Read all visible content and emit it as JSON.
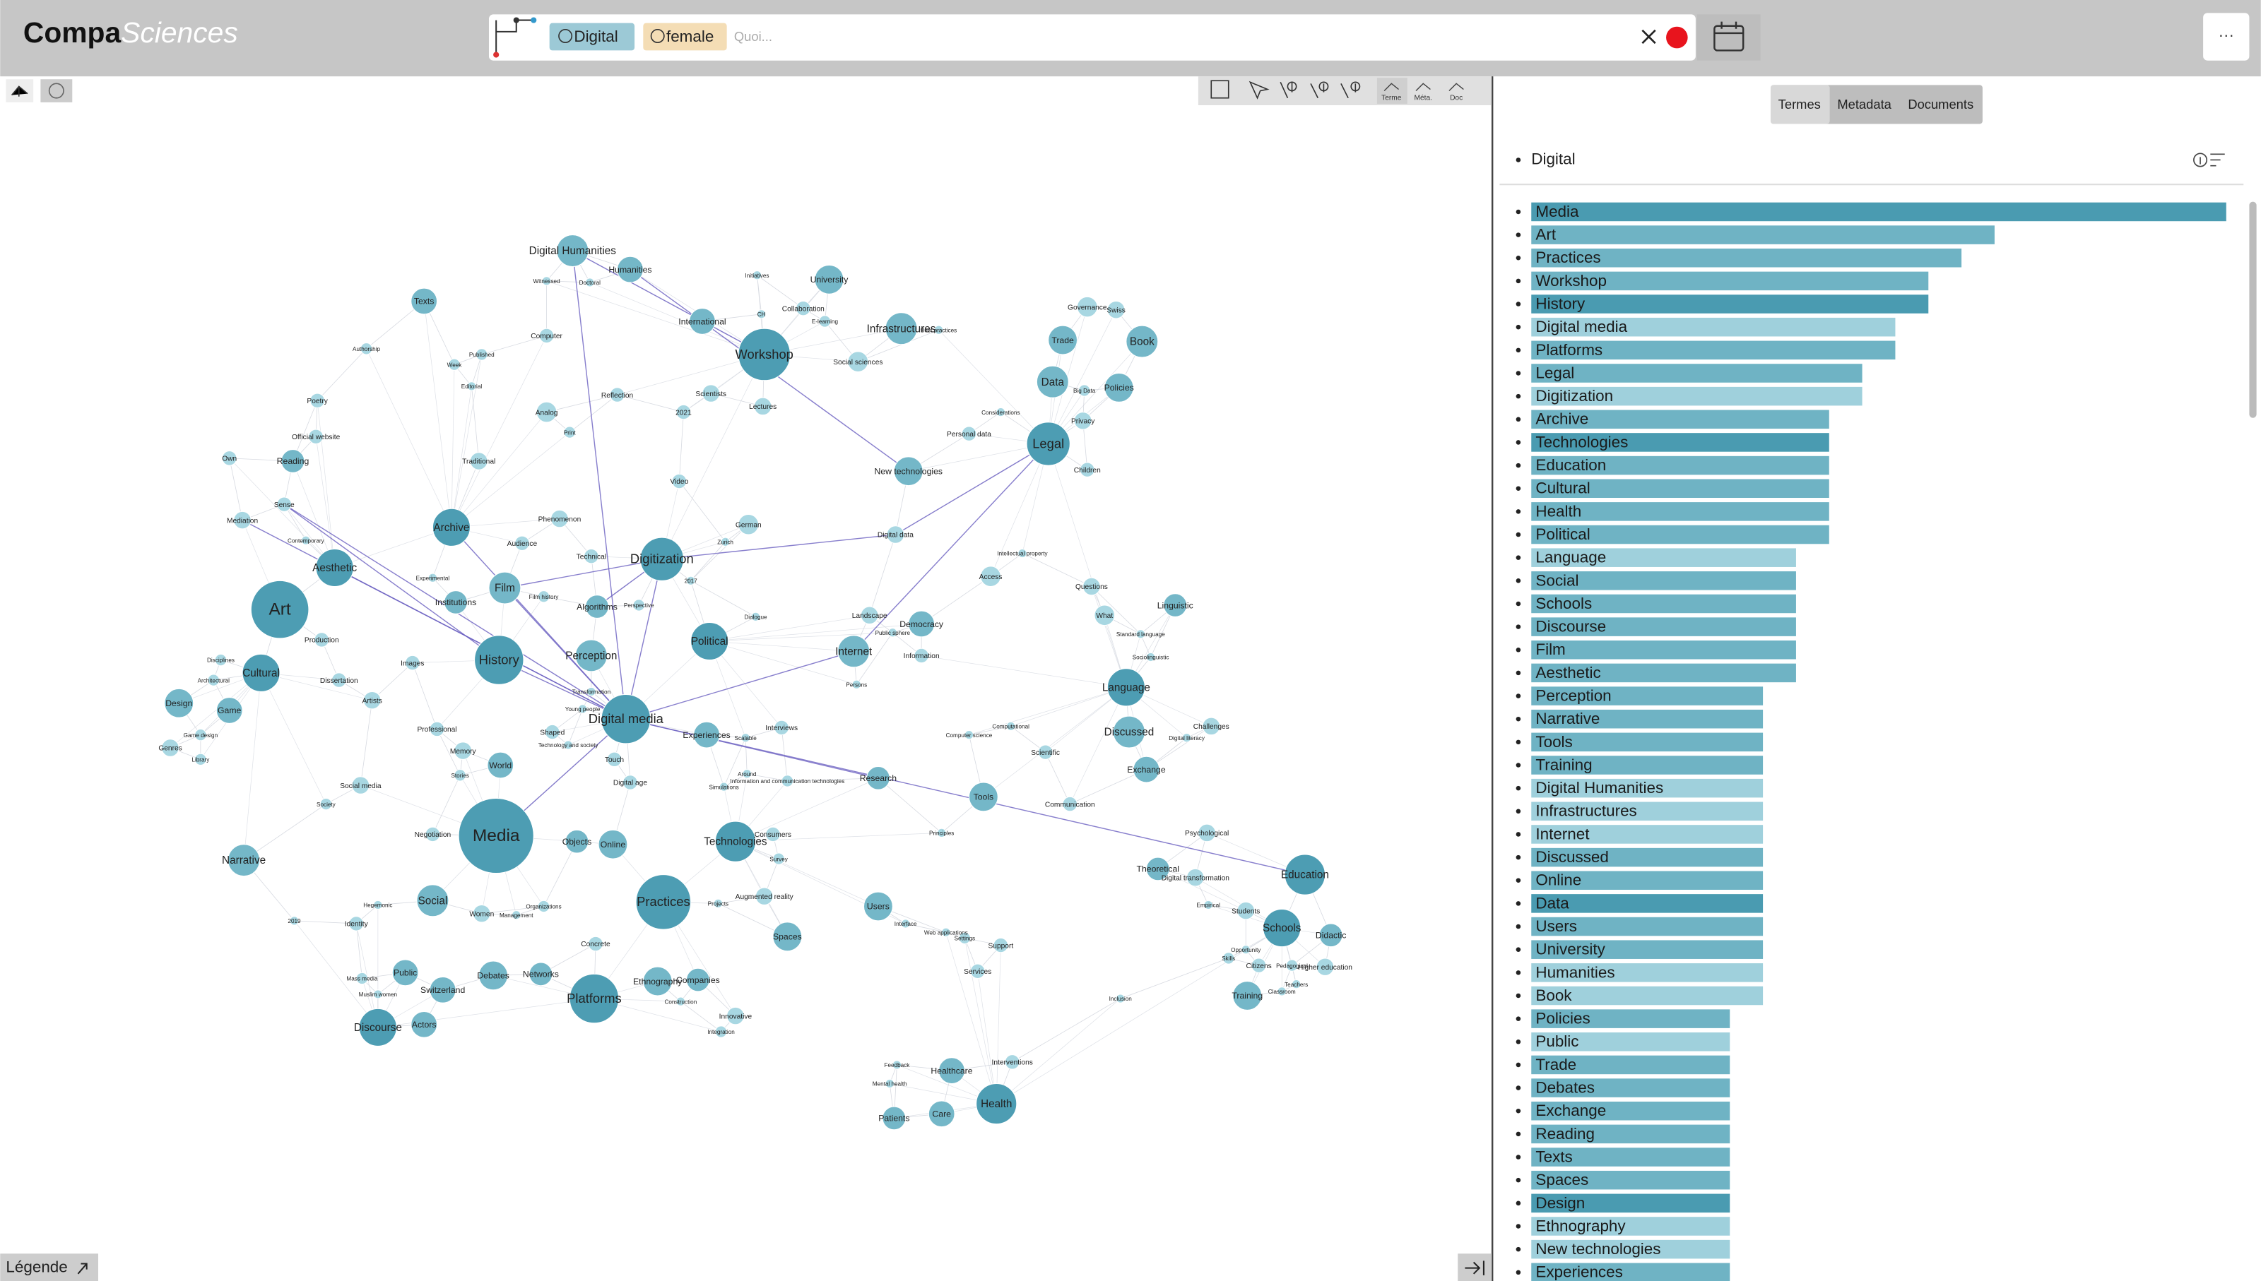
{
  "header": {
    "brand_bold": "Compa",
    "brand_italic": "Sciences",
    "chips": [
      "Digital",
      "female"
    ],
    "placeholder": "Quoi...",
    "menu": "···"
  },
  "toolbar": {
    "modes": [
      "Terme",
      "Méta.",
      "Doc"
    ]
  },
  "graph": {
    "nodes": [
      "Digital Humanities",
      "Humanities",
      "Texts",
      "Workshop",
      "University",
      "International",
      "Infrastructures",
      "Social sciences",
      "Collaboration",
      "E-learning",
      "Authorship",
      "Computer",
      "Published",
      "Poetry",
      "Analog",
      "Reflection",
      "Scientists",
      "Lectures",
      "2021",
      "Print",
      "Official website",
      "Reading",
      "Traditional",
      "Own",
      "Mediation",
      "Sense",
      "Archive",
      "Phenomenon",
      "Audience",
      "Technical",
      "Digitization",
      "German",
      "Video",
      "Zurich",
      "Aesthetic",
      "Art",
      "Film",
      "Institutions",
      "Film history",
      "Algorithms",
      "Perspective",
      "2017",
      "Production",
      "Cultural",
      "Disciplines",
      "History",
      "Perception",
      "Political",
      "Images",
      "Dissertation",
      "Architectural",
      "Artists",
      "Design",
      "Game",
      "Digital media",
      "Transformation",
      "Young people",
      "Professional",
      "Shaped",
      "Game design",
      "Genres",
      "Memory",
      "Library",
      "Technology and society",
      "World",
      "Touch",
      "Stories",
      "Social media",
      "Digital age",
      "Society",
      "Media",
      "Negotiation",
      "Objects",
      "Online",
      "Narrative",
      "Social",
      "Practices",
      "Women",
      "Organizations",
      "Management",
      "Hegemonic",
      "2019",
      "Identity",
      "Concrete",
      "Debates",
      "Networks",
      "Public",
      "Mass media",
      "Switzerland",
      "Muslim women",
      "Ethnography",
      "Companies",
      "Platforms",
      "Construction",
      "Discourse",
      "Actors",
      "Innovative",
      "Integration",
      "Experiences",
      "Scalable",
      "Interviews",
      "Around",
      "Information and communication technologies",
      "Simulations",
      "Research",
      "Technologies",
      "Consumers",
      "Survey",
      "Augmented reality",
      "Projects",
      "Spaces",
      "Users",
      "Interface",
      "Web applications",
      "Settings",
      "Support",
      "Services",
      "Feedback",
      "Healthcare",
      "Interventions",
      "Mental health",
      "Health",
      "Patients",
      "Care",
      "Internet",
      "Landscape",
      "Public sphere",
      "Democracy",
      "Information",
      "Dialogue",
      "Persons",
      "Computer science",
      "Computational",
      "Scientific",
      "Tools",
      "Communication",
      "Principles",
      "Digital data",
      "New technologies",
      "Personal data",
      "Considerations",
      "Intellectual property",
      "Access",
      "Legal",
      "Trade",
      "Book",
      "Governance",
      "Swiss",
      "Data",
      "Big Data",
      "Policies",
      "Privacy",
      "Children",
      "Questions",
      "What",
      "Linguistic",
      "Standard language",
      "Sociolinguistic",
      "Language",
      "Discussed",
      "Challenges",
      "Digital literacy",
      "Exchange",
      "Psychological",
      "Theoretical",
      "Digital transformation",
      "Education",
      "Empirical",
      "Students",
      "Schools",
      "Didactic",
      "Opportunity",
      "Skills",
      "Citizens",
      "Pedagogical",
      "Higher education",
      "Teachers",
      "Training",
      "Classroom",
      "Inclusion",
      "Witnessed",
      "Doctoral",
      "Initiatives",
      "CH",
      "Best practices",
      "Week",
      "Editorial",
      "Contemporary",
      "Experimental"
    ]
  },
  "panel": {
    "tabs": [
      "Termes",
      "Metadata",
      "Documents"
    ],
    "root": "Digital",
    "terms": [
      "Media",
      "Art",
      "Practices",
      "Workshop",
      "History",
      "Digital media",
      "Platforms",
      "Legal",
      "Digitization",
      "Archive",
      "Technologies",
      "Education",
      "Cultural",
      "Health",
      "Political",
      "Language",
      "Social",
      "Schools",
      "Discourse",
      "Film",
      "Aesthetic",
      "Perception",
      "Narrative",
      "Tools",
      "Training",
      "Digital Humanities",
      "Infrastructures",
      "Internet",
      "Discussed",
      "Online",
      "Data",
      "Users",
      "University",
      "Humanities",
      "Book",
      "Policies",
      "Public",
      "Trade",
      "Debates",
      "Exchange",
      "Reading",
      "Texts",
      "Spaces",
      "Design",
      "Ethnography",
      "New technologies",
      "Experiences"
    ],
    "values": [
      21,
      14,
      13,
      12,
      12,
      11,
      11,
      10,
      10,
      9,
      9,
      9,
      9,
      9,
      9,
      8,
      8,
      8,
      8,
      8,
      8,
      7,
      7,
      7,
      7,
      7,
      7,
      7,
      7,
      7,
      7,
      7,
      7,
      7,
      7,
      6,
      6,
      6,
      6,
      6,
      6,
      6,
      6,
      6,
      6,
      6,
      6
    ],
    "colors": [
      "#4a9bb1",
      "#6fb3c4",
      "#6fb3c4",
      "#6fb3c4",
      "#4a9bb1",
      "#9fd0dc",
      "#6fb3c4",
      "#6fb3c4",
      "#9fd0dc",
      "#6fb3c4",
      "#4a9bb1",
      "#6fb3c4",
      "#6fb3c4",
      "#6fb3c4",
      "#6fb3c4",
      "#9fd0dc",
      "#6fb3c4",
      "#6fb3c4",
      "#6fb3c4",
      "#6fb3c4",
      "#6fb3c4",
      "#6fb3c4",
      "#6fb3c4",
      "#6fb3c4",
      "#6fb3c4",
      "#9fd0dc",
      "#9fd0dc",
      "#9fd0dc",
      "#6fb3c4",
      "#6fb3c4",
      "#4a9bb1",
      "#6fb3c4",
      "#6fb3c4",
      "#9fd0dc",
      "#9fd0dc",
      "#6fb3c4",
      "#9fd0dc",
      "#6fb3c4",
      "#6fb3c4",
      "#6fb3c4",
      "#6fb3c4",
      "#6fb3c4",
      "#6fb3c4",
      "#4a9bb1",
      "#9fd0dc",
      "#9fd0dc",
      "#6fb3c4"
    ]
  },
  "footer": {
    "legend": "Légende"
  }
}
